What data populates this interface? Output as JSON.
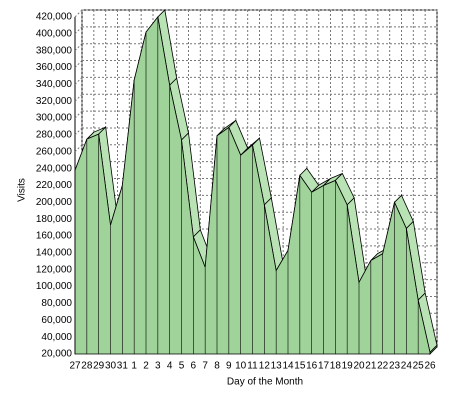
{
  "chart_data": {
    "type": "area3d",
    "x_label": "Day of the Month",
    "y_label": "Visits",
    "categories": [
      "27",
      "28",
      "29",
      "30",
      "31",
      "1",
      "2",
      "3",
      "4",
      "5",
      "6",
      "7",
      "8",
      "9",
      "10",
      "11",
      "12",
      "13",
      "14",
      "15",
      "16",
      "17",
      "18",
      "19",
      "20",
      "21",
      "22",
      "23",
      "24",
      "25",
      "26"
    ],
    "values": [
      238000,
      275000,
      281000,
      173000,
      220000,
      345000,
      402000,
      420000,
      339000,
      274000,
      159000,
      123000,
      279000,
      289000,
      256000,
      268000,
      197000,
      119000,
      143000,
      232000,
      212000,
      220000,
      226000,
      197000,
      105000,
      131000,
      139000,
      200000,
      169000,
      84000,
      22000
    ],
    "color": "#9fd39a",
    "ylim": [
      20000,
      420000
    ],
    "yticks": [
      {
        "value": 20000,
        "label": "20,000"
      },
      {
        "value": 40000,
        "label": "40,000"
      },
      {
        "value": 60000,
        "label": "60,000"
      },
      {
        "value": 80000,
        "label": "80,000"
      },
      {
        "value": 100000,
        "label": "100,000"
      },
      {
        "value": 120000,
        "label": "120,000"
      },
      {
        "value": 140000,
        "label": "140,000"
      },
      {
        "value": 160000,
        "label": "160,000"
      },
      {
        "value": 180000,
        "label": "180,000"
      },
      {
        "value": 200000,
        "label": "200,000"
      },
      {
        "value": 220000,
        "label": "220,000"
      },
      {
        "value": 240000,
        "label": "240,000"
      },
      {
        "value": 260000,
        "label": "260,000"
      },
      {
        "value": 280000,
        "label": "280,000"
      },
      {
        "value": 300000,
        "label": "300,000"
      },
      {
        "value": 320000,
        "label": "320,000"
      },
      {
        "value": 340000,
        "label": "340,000"
      },
      {
        "value": 360000,
        "label": "360,000"
      },
      {
        "value": 380000,
        "label": "380,000"
      },
      {
        "value": 400000,
        "label": "400,000"
      },
      {
        "value": 420000,
        "label": "420,000"
      }
    ],
    "grid": true
  }
}
